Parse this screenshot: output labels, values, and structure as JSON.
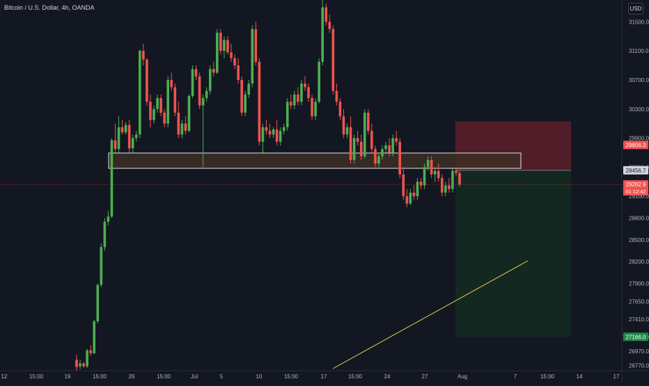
{
  "header": {
    "title": "Bitcoin / U.S. Dollar, 4h, OANDA",
    "currency": "USD"
  },
  "chart_data": {
    "type": "candlestick",
    "symbol": "Bitcoin / U.S. Dollar",
    "interval": "4h",
    "exchange": "OANDA",
    "currency": "USD",
    "ylim": [
      26700,
      31800
    ],
    "y_ticks": [
      "26770.0",
      "26970.0",
      "27166.0",
      "27410.0",
      "27650.0",
      "27900.0",
      "28200.0",
      "28500.0",
      "28800.0",
      "29100.0",
      "29500.0",
      "29900.0",
      "30300.0",
      "30700.0",
      "31100.0",
      "31500.0"
    ],
    "x_ticks": [
      "12",
      "15:00",
      "19",
      "15:00",
      "26",
      "15:00",
      "Jul",
      "5",
      "10",
      "15:00",
      "17",
      "15:00",
      "24",
      "27",
      "Aug",
      "7",
      "15:00",
      "14",
      "17"
    ],
    "price_labels": {
      "stop": "29806.3",
      "entry": "29456.7",
      "current": "29262.9",
      "countdown": "01:12:42",
      "target": "27166.0"
    },
    "levels": {
      "current_price": 29262.9,
      "entry": 29456.7,
      "stop": 29806.3,
      "target": 27166.0,
      "zone_top": 29780,
      "zone_bottom": 29470
    },
    "colors": {
      "background": "#131722",
      "up": "#26a69a",
      "up_body": "#4caf50",
      "down": "#ef5350",
      "zone_fill": "#3d2e24",
      "zone_stroke": "#e6e6e6",
      "stop_fill": "#5c1f2a",
      "target_fill": "#152a22",
      "trendline": "#e5d548",
      "label_red": "#f05350",
      "label_green": "#1e8a48",
      "label_gray": "#d1d4dc",
      "axis_text": "#b2b5be"
    },
    "trendline": {
      "from": [
        "Jul 17",
        26720
      ],
      "to": [
        "Aug 8",
        28160
      ]
    },
    "ohlc": [
      [
        26850,
        26920,
        26700,
        26750
      ],
      [
        26760,
        26850,
        26720,
        26800
      ],
      [
        26800,
        26820,
        26740,
        26760
      ],
      [
        26760,
        27000,
        26740,
        26980
      ],
      [
        26980,
        27050,
        26900,
        26940
      ],
      [
        26940,
        27400,
        26930,
        27380
      ],
      [
        27380,
        27900,
        27350,
        27880
      ],
      [
        27880,
        28450,
        27850,
        28400
      ],
      [
        28400,
        28800,
        28350,
        28750
      ],
      [
        28750,
        28900,
        28700,
        28820
      ],
      [
        28820,
        29900,
        28800,
        29870
      ],
      [
        29870,
        30100,
        29700,
        29750
      ],
      [
        29750,
        30200,
        29700,
        30050
      ],
      [
        30050,
        30150,
        29950,
        29980
      ],
      [
        29980,
        30120,
        29950,
        30080
      ],
      [
        30080,
        30150,
        29700,
        29760
      ],
      [
        29760,
        29950,
        29700,
        29900
      ],
      [
        29900,
        30000,
        29850,
        29950
      ],
      [
        29950,
        31120,
        29900,
        31100
      ],
      [
        31100,
        31200,
        30900,
        30980
      ],
      [
        30980,
        31000,
        30350,
        30400
      ],
      [
        30400,
        30500,
        30050,
        30150
      ],
      [
        30150,
        30350,
        30100,
        30300
      ],
      [
        30300,
        30500,
        30250,
        30450
      ],
      [
        30450,
        30500,
        30200,
        30250
      ],
      [
        30250,
        30300,
        30050,
        30100
      ],
      [
        30100,
        30750,
        30050,
        30700
      ],
      [
        30700,
        30800,
        30550,
        30600
      ],
      [
        30600,
        30650,
        30200,
        30250
      ],
      [
        30250,
        30400,
        29900,
        29950
      ],
      [
        29950,
        30150,
        29900,
        30100
      ],
      [
        30100,
        30200,
        29950,
        30000
      ],
      [
        30000,
        30500,
        29980,
        30480
      ],
      [
        30480,
        30900,
        30450,
        30850
      ],
      [
        30850,
        30900,
        30700,
        30750
      ],
      [
        30750,
        30800,
        30300,
        30350
      ],
      [
        30350,
        30500,
        29500,
        30450
      ],
      [
        30450,
        30600,
        30400,
        30550
      ],
      [
        30550,
        30900,
        30500,
        30850
      ],
      [
        30850,
        30950,
        30750,
        30800
      ],
      [
        30800,
        31400,
        30780,
        31350
      ],
      [
        31350,
        31400,
        31050,
        31100
      ],
      [
        31100,
        31300,
        31000,
        31250
      ],
      [
        31250,
        31300,
        31050,
        31080
      ],
      [
        31080,
        31200,
        30950,
        31000
      ],
      [
        31000,
        31050,
        30850,
        30900
      ],
      [
        30900,
        31000,
        30650,
        30700
      ],
      [
        30700,
        30750,
        30200,
        30250
      ],
      [
        30250,
        30550,
        30200,
        30500
      ],
      [
        30500,
        30700,
        30450,
        30650
      ],
      [
        30650,
        31450,
        30600,
        31400
      ],
      [
        31400,
        31500,
        30900,
        30950
      ],
      [
        30950,
        31000,
        29800,
        29850
      ],
      [
        29850,
        30100,
        29700,
        30050
      ],
      [
        30050,
        30150,
        29950,
        30000
      ],
      [
        30000,
        30100,
        29900,
        29950
      ],
      [
        29950,
        30050,
        29900,
        30020
      ],
      [
        30020,
        30150,
        29800,
        29850
      ],
      [
        29850,
        30050,
        29800,
        30000
      ],
      [
        30000,
        30100,
        29950,
        30050
      ],
      [
        30050,
        30450,
        30000,
        30400
      ],
      [
        30400,
        30500,
        30300,
        30350
      ],
      [
        30350,
        30550,
        30300,
        30500
      ],
      [
        30500,
        30600,
        30350,
        30400
      ],
      [
        30400,
        30700,
        30350,
        30650
      ],
      [
        30650,
        30750,
        30550,
        30600
      ],
      [
        30600,
        30650,
        30400,
        30450
      ],
      [
        30450,
        30500,
        30150,
        30200
      ],
      [
        30200,
        30450,
        30150,
        30400
      ],
      [
        30400,
        31000,
        30380,
        30950
      ],
      [
        30950,
        31800,
        30900,
        31700
      ],
      [
        31700,
        31750,
        31450,
        31500
      ],
      [
        31500,
        31600,
        31350,
        31400
      ],
      [
        31400,
        31450,
        30500,
        30550
      ],
      [
        30550,
        30650,
        30350,
        30400
      ],
      [
        30400,
        30450,
        30150,
        30200
      ],
      [
        30200,
        30300,
        29900,
        29950
      ],
      [
        29950,
        30100,
        29900,
        30050
      ],
      [
        30050,
        30200,
        29550,
        29600
      ],
      [
        29600,
        29950,
        29550,
        29900
      ],
      [
        29900,
        30000,
        29800,
        29850
      ],
      [
        29850,
        29950,
        29600,
        29650
      ],
      [
        29650,
        30300,
        29620,
        30250
      ],
      [
        30250,
        30300,
        29950,
        30000
      ],
      [
        30000,
        30100,
        29700,
        29750
      ],
      [
        29750,
        29800,
        29500,
        29550
      ],
      [
        29550,
        29700,
        29500,
        29650
      ],
      [
        29650,
        29800,
        29600,
        29750
      ],
      [
        29750,
        29850,
        29700,
        29800
      ],
      [
        29800,
        29900,
        29650,
        29700
      ],
      [
        29700,
        29950,
        29650,
        29900
      ],
      [
        29900,
        30000,
        29800,
        29850
      ],
      [
        29850,
        29900,
        29350,
        29400
      ],
      [
        29400,
        29500,
        29050,
        29100
      ],
      [
        29100,
        29200,
        28950,
        29000
      ],
      [
        29000,
        29200,
        28980,
        29150
      ],
      [
        29150,
        29250,
        29050,
        29100
      ],
      [
        29100,
        29350,
        29050,
        29300
      ],
      [
        29300,
        29350,
        29200,
        29250
      ],
      [
        29250,
        29550,
        29200,
        29500
      ],
      [
        29500,
        29650,
        29450,
        29600
      ],
      [
        29600,
        29650,
        29350,
        29400
      ],
      [
        29400,
        29500,
        29300,
        29450
      ],
      [
        29450,
        29550,
        29300,
        29350
      ],
      [
        29350,
        29400,
        29100,
        29150
      ],
      [
        29150,
        29300,
        29100,
        29250
      ],
      [
        29250,
        29350,
        29150,
        29200
      ],
      [
        29200,
        29480,
        29150,
        29450
      ],
      [
        29450,
        29500,
        29380,
        29420
      ],
      [
        29420,
        29450,
        29230,
        29262
      ]
    ]
  }
}
